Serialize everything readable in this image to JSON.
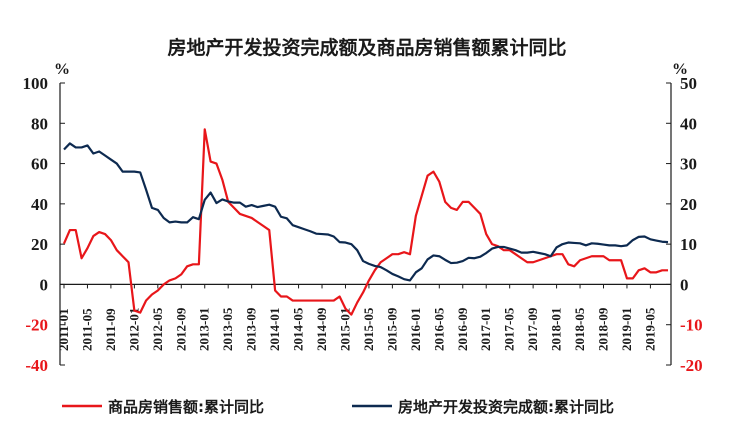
{
  "chart_data": {
    "type": "line",
    "title": "房地产开发投资完成额及商品房销售额累计同比",
    "left_axis": {
      "unit": "%",
      "ylim": [
        -40,
        100
      ],
      "ticks": [
        100,
        80,
        60,
        40,
        20,
        0,
        -20,
        -40
      ]
    },
    "right_axis": {
      "unit": "%",
      "ylim": [
        -20,
        50
      ],
      "ticks": [
        50,
        40,
        30,
        20,
        10,
        0,
        -10,
        -20
      ]
    },
    "x": [
      "2011-01",
      "2011-02",
      "2011-03",
      "2011-04",
      "2011-05",
      "2011-06",
      "2011-07",
      "2011-08",
      "2011-09",
      "2011-10",
      "2011-11",
      "2011-12",
      "2012-01",
      "2012-02",
      "2012-03",
      "2012-04",
      "2012-05",
      "2012-06",
      "2012-07",
      "2012-08",
      "2012-09",
      "2012-10",
      "2012-11",
      "2012-12",
      "2013-01",
      "2013-02",
      "2013-03",
      "2013-04",
      "2013-05",
      "2013-06",
      "2013-07",
      "2013-08",
      "2013-09",
      "2013-10",
      "2013-11",
      "2013-12",
      "2014-01",
      "2014-02",
      "2014-03",
      "2014-04",
      "2014-05",
      "2014-06",
      "2014-07",
      "2014-08",
      "2014-09",
      "2014-10",
      "2014-11",
      "2014-12",
      "2015-01",
      "2015-02",
      "2015-03",
      "2015-04",
      "2015-05",
      "2015-06",
      "2015-07",
      "2015-08",
      "2015-09",
      "2015-10",
      "2015-11",
      "2015-12",
      "2016-01",
      "2016-02",
      "2016-03",
      "2016-04",
      "2016-05",
      "2016-06",
      "2016-07",
      "2016-08",
      "2016-09",
      "2016-10",
      "2016-11",
      "2016-12",
      "2017-01",
      "2017-02",
      "2017-03",
      "2017-04",
      "2017-05",
      "2017-06",
      "2017-07",
      "2017-08",
      "2017-09",
      "2017-10",
      "2017-11",
      "2017-12",
      "2018-01",
      "2018-02",
      "2018-03",
      "2018-04",
      "2018-05",
      "2018-06",
      "2018-07",
      "2018-08",
      "2018-09",
      "2018-10",
      "2018-11",
      "2018-12",
      "2019-01",
      "2019-02",
      "2019-03",
      "2019-04",
      "2019-05",
      "2019-06",
      "2019-07",
      "2019-08"
    ],
    "x_tick_labels": [
      "2011-01",
      "2011-05",
      "2011-09",
      "2012-01",
      "2012-05",
      "2012-09",
      "2013-01",
      "2013-05",
      "2013-09",
      "2014-01",
      "2014-05",
      "2014-09",
      "2015-01",
      "2015-05",
      "2015-09",
      "2016-01",
      "2016-05",
      "2016-09",
      "2017-01",
      "2017-05",
      "2017-09",
      "2018-01",
      "2018-05",
      "2018-09",
      "2019-01",
      "2019-05"
    ],
    "series": [
      {
        "name": "商品房销售额:累计同比",
        "axis": "left",
        "color": "#e8161a",
        "values": [
          20.3,
          27.0,
          27.0,
          13.0,
          18.0,
          24.0,
          26.0,
          25.0,
          22.0,
          17.0,
          14.0,
          11.0,
          -13.0,
          -14.0,
          -8.0,
          -5.0,
          -3.0,
          0.0,
          2.0,
          3.0,
          5.0,
          9.0,
          10.0,
          10.0,
          77.0,
          61.0,
          60.0,
          52.0,
          41.0,
          38.0,
          35.0,
          34.0,
          33.0,
          31.0,
          29.0,
          27.0,
          -3.0,
          -6.0,
          -6.0,
          -8.0,
          -8.0,
          -8.0,
          -8.0,
          -8.0,
          -8.0,
          -8.0,
          -8.0,
          -6.0,
          -12.0,
          -15.0,
          -9.0,
          -4.0,
          2.0,
          7.0,
          11.0,
          13.0,
          15.0,
          15.0,
          16.0,
          15.0,
          34.0,
          44.0,
          54.0,
          56.0,
          51.0,
          41.0,
          38.0,
          37.0,
          41.0,
          41.0,
          38.0,
          35.0,
          25.0,
          20.0,
          19.0,
          17.0,
          17.0,
          15.0,
          13.0,
          11.0,
          11.0,
          12.0,
          13.0,
          14.0,
          15.0,
          15.0,
          10.0,
          9.0,
          12.0,
          13.0,
          14.0,
          14.0,
          14.0,
          12.0,
          12.0,
          12.0,
          3.0,
          3.0,
          7.0,
          8.0,
          6.0,
          6.0,
          7.0,
          7.0
        ]
      },
      {
        "name": "房地产开发投资完成额:累计同比",
        "axis": "right",
        "color": "#0d2a50",
        "values": [
          33.5,
          35.0,
          34.0,
          34.0,
          34.5,
          32.5,
          33.0,
          32.0,
          31.0,
          30.0,
          28.0,
          28.0,
          28.0,
          27.8,
          23.5,
          19.0,
          18.5,
          16.5,
          15.4,
          15.6,
          15.4,
          15.4,
          16.7,
          16.2,
          21.0,
          22.8,
          20.2,
          21.1,
          20.6,
          20.3,
          20.3,
          19.3,
          19.7,
          19.2,
          19.5,
          19.8,
          19.3,
          16.8,
          16.4,
          14.7,
          14.2,
          13.7,
          13.2,
          12.6,
          12.5,
          12.4,
          11.9,
          10.5,
          10.4,
          10.0,
          8.5,
          5.8,
          5.1,
          4.6,
          4.3,
          3.5,
          2.6,
          2.0,
          1.3,
          1.0,
          3.0,
          4.0,
          6.2,
          7.2,
          7.0,
          6.1,
          5.3,
          5.4,
          5.8,
          6.6,
          6.5,
          6.9,
          7.8,
          8.9,
          9.3,
          9.3,
          8.9,
          8.5,
          7.9,
          7.9,
          8.1,
          7.8,
          7.5,
          7.0,
          9.2,
          10.0,
          10.4,
          10.3,
          10.2,
          9.7,
          10.2,
          10.1,
          9.9,
          9.7,
          9.7,
          9.5,
          9.7,
          11.0,
          11.8,
          11.9,
          11.2,
          10.9,
          10.6,
          10.5
        ]
      }
    ],
    "legend": "bottom"
  },
  "colors": {
    "axis": "#1a1a1a",
    "title": "#1a1a1a"
  }
}
